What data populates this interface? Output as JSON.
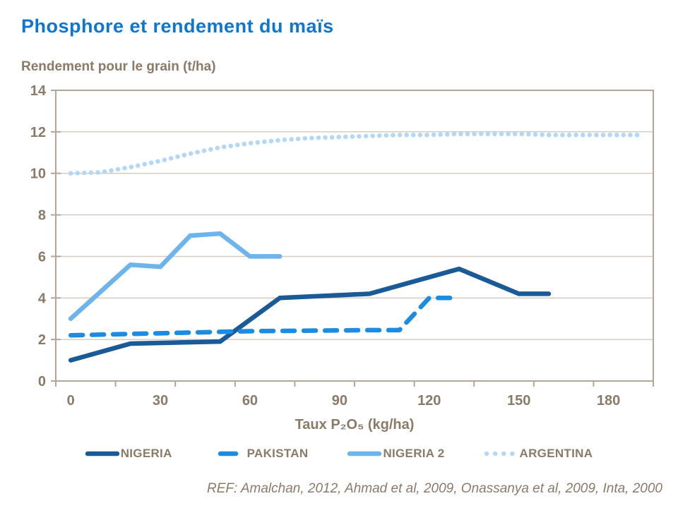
{
  "title": "Phosphore et rendement du maïs",
  "y_axis_title": "Rendement pour le grain (t/ha)",
  "ref_note": "REF: Amalchan, 2012, Ahmad et al, 2009, Onassanya et al, 2009, Inta, 2000",
  "colors": {
    "title_blue": "#0e76cf",
    "text_brown": "#8a7a67",
    "axis_line": "#b2a697",
    "gridline": "#d1c8bc",
    "nigeria": "#1a5a96",
    "pakistan": "#1b8ce2",
    "nigeria2": "#6db4ec",
    "argentina": "#b4d7f4"
  },
  "chart_data": {
    "type": "line",
    "title": "Phosphore et rendement du maïs",
    "xlabel": "Taux P₂O₅ (kg/ha)",
    "ylabel": "Rendement pour le grain (t/ha)",
    "xlim": [
      0,
      190
    ],
    "ylim": [
      0,
      14
    ],
    "x_tick_labels": [
      0,
      30,
      60,
      90,
      120,
      150,
      180
    ],
    "y_tick_labels": [
      0,
      2,
      4,
      6,
      8,
      10,
      12,
      14
    ],
    "grid": "horizontal",
    "legend_position": "bottom",
    "series": [
      {
        "name": "NIGERIA",
        "style": "solid",
        "color": "#1a5a96",
        "x": [
          0,
          20,
          50,
          70,
          100,
          130,
          150,
          160
        ],
        "y": [
          1.0,
          1.8,
          1.9,
          4.0,
          4.2,
          5.4,
          4.2,
          4.2
        ]
      },
      {
        "name": "PAKISTAN",
        "style": "dashed",
        "color": "#1b8ce2",
        "x": [
          0,
          30,
          60,
          100,
          110,
          120,
          130
        ],
        "y": [
          2.2,
          2.3,
          2.4,
          2.45,
          2.45,
          4.0,
          4.0
        ]
      },
      {
        "name": "NIGERIA 2",
        "style": "solid",
        "color": "#6db4ec",
        "x": [
          0,
          20,
          30,
          40,
          50,
          60,
          70
        ],
        "y": [
          3.0,
          5.6,
          5.5,
          7.0,
          7.1,
          6.0,
          6.0
        ]
      },
      {
        "name": "ARGENTINA",
        "style": "dotted",
        "color": "#b4d7f4",
        "x": [
          0,
          10,
          20,
          30,
          40,
          50,
          60,
          70,
          80,
          90,
          100,
          110,
          120,
          130,
          140,
          150,
          160,
          170,
          180,
          190
        ],
        "y": [
          10.0,
          10.05,
          10.3,
          10.6,
          10.95,
          11.25,
          11.45,
          11.6,
          11.7,
          11.75,
          11.8,
          11.85,
          11.85,
          11.9,
          11.9,
          11.9,
          11.85,
          11.85,
          11.85,
          11.85
        ]
      }
    ]
  }
}
